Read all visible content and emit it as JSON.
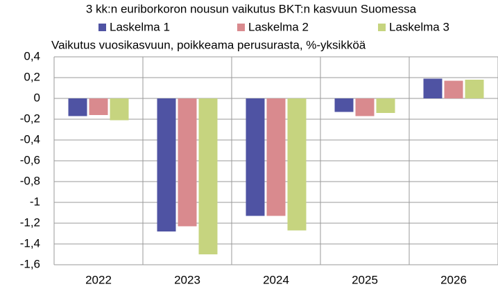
{
  "chart_data": {
    "type": "bar",
    "title": "3 kk:n euriborkoron nousun vaikutus BKT:n kasvuun Suomessa",
    "y_label": "Vaikutus vuosikasvuun, poikkeama perusurasta, %-yksikköä",
    "categories": [
      "2022",
      "2023",
      "2024",
      "2025",
      "2026"
    ],
    "series": [
      {
        "name": "Laskelma 1",
        "color": "#4f53a3",
        "values": [
          -0.17,
          -1.28,
          -1.13,
          -0.13,
          0.19
        ]
      },
      {
        "name": "Laskelma 2",
        "color": "#d98a8e",
        "values": [
          -0.16,
          -1.23,
          -1.13,
          -0.17,
          0.17
        ]
      },
      {
        "name": "Laskelma 3",
        "color": "#c6d47f",
        "values": [
          -0.21,
          -1.5,
          -1.27,
          -0.14,
          0.18
        ]
      }
    ],
    "ylim": [
      -1.6,
      0.4
    ],
    "yticks": [
      {
        "value": 0.4,
        "label": "0,4"
      },
      {
        "value": 0.2,
        "label": "0,2"
      },
      0,
      {
        "value": -0.2,
        "label": "-0,2"
      },
      {
        "value": -0.4,
        "label": "-0,4"
      },
      {
        "value": -0.6,
        "label": "-0,6"
      },
      {
        "value": -0.8,
        "label": "-0,8"
      },
      -1,
      {
        "value": -1.2,
        "label": "-1,2"
      },
      {
        "value": -1.4,
        "label": "-1,4"
      },
      {
        "value": -1.6,
        "label": "-1,6"
      }
    ],
    "grid": true
  }
}
